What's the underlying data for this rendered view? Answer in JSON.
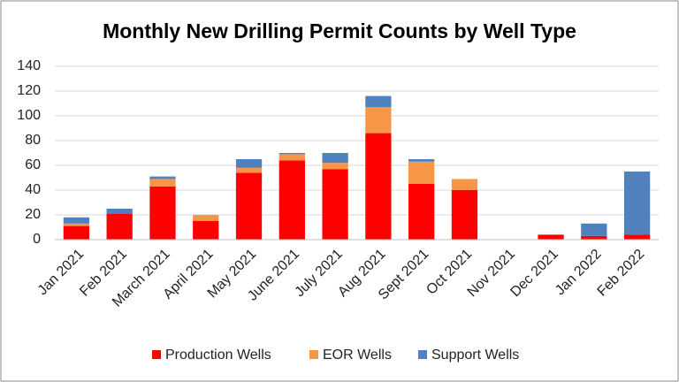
{
  "chart_data": {
    "type": "stacked-bar",
    "title": "Monthly New Drilling Permit Counts by Well Type",
    "categories": [
      "Jan 2021",
      "Feb 2021",
      "March 2021",
      "April 2021",
      "May 2021",
      "June 2021",
      "July 2021",
      "Aug 2021",
      "Sept 2021",
      "Oct 2021",
      "Nov 2021",
      "Dec 2021",
      "Jan 2022",
      "Feb 2022"
    ],
    "series": [
      {
        "name": "Production Wells",
        "color": "#ff0000",
        "values": [
          11,
          21,
          43,
          15,
          54,
          64,
          57,
          86,
          45,
          40,
          0,
          4,
          3,
          4
        ]
      },
      {
        "name": "EOR Wells",
        "color": "#f79646",
        "values": [
          2,
          0,
          6,
          5,
          4,
          5,
          5,
          21,
          18,
          9,
          0,
          0,
          0,
          0
        ]
      },
      {
        "name": "Support Wells",
        "color": "#4f81bd",
        "values": [
          5,
          4,
          2,
          0,
          7,
          1,
          8,
          9,
          2,
          0,
          0,
          0,
          10,
          51
        ]
      }
    ],
    "ylim": [
      0,
      140
    ],
    "yticks": [
      0,
      20,
      40,
      60,
      80,
      100,
      120,
      140
    ],
    "grid": true,
    "legend": "bottom"
  }
}
